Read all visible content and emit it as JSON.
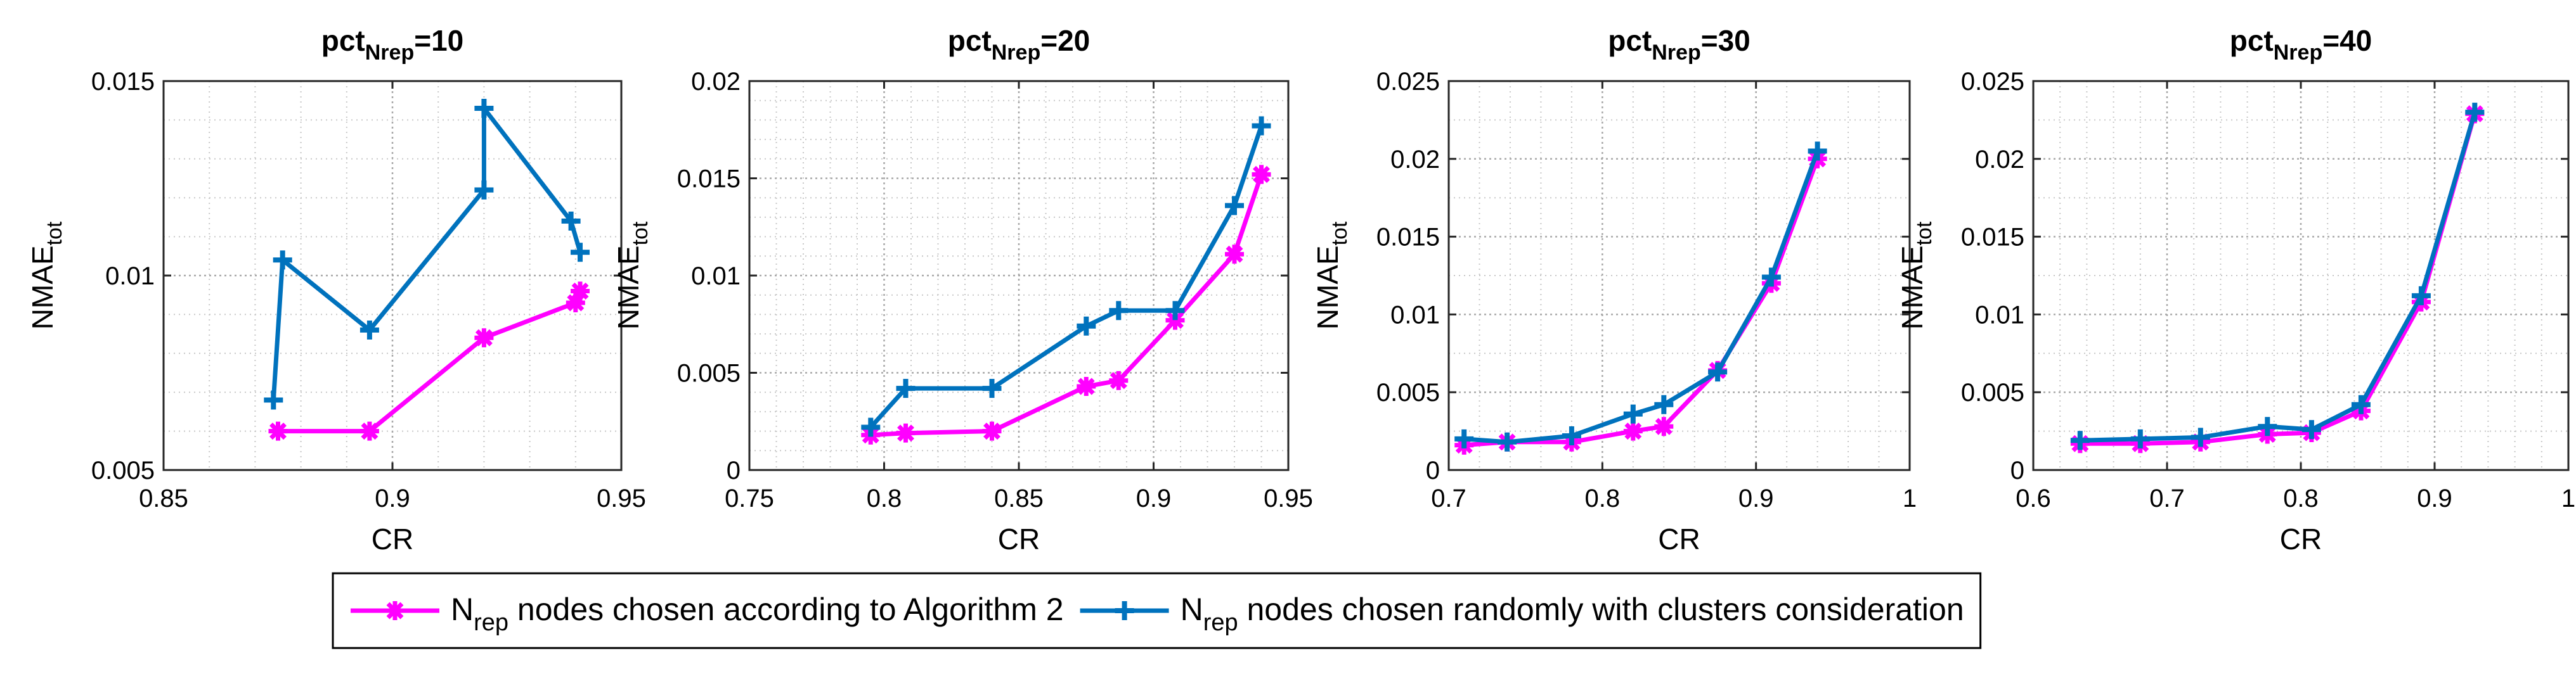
{
  "chart_data": [
    {
      "type": "line",
      "title": "pct",
      "title_sub": "Nrep",
      "title_suffix": "=10",
      "xlabel": "CR",
      "ylabel": "NMAE",
      "ylabel_sub": "tot",
      "xlim": [
        0.85,
        0.95
      ],
      "ylim": [
        0.005,
        0.015
      ],
      "xticks": [
        0.85,
        0.9,
        0.95
      ],
      "xtick_labels": [
        "0.85",
        "0.9",
        "0.95"
      ],
      "yticks": [
        0.005,
        0.01,
        0.015
      ],
      "ytick_labels": [
        "0.005",
        "0.01",
        "0.015"
      ],
      "minor_x": 0.01,
      "minor_y": 0.001,
      "grid": true,
      "series": [
        {
          "name": "algorithm2",
          "color": "#FF00FF",
          "x": [
            0.875,
            0.895,
            0.92,
            0.94,
            0.941
          ],
          "y": [
            0.006,
            0.006,
            0.0084,
            0.0093,
            0.0096
          ]
        },
        {
          "name": "random",
          "color": "#0072BD",
          "x": [
            0.874,
            0.876,
            0.895,
            0.92,
            0.92,
            0.939,
            0.941
          ],
          "y": [
            0.0068,
            0.0104,
            0.0086,
            0.0122,
            0.0143,
            0.0114,
            0.0106
          ]
        }
      ]
    },
    {
      "type": "line",
      "title": "pct",
      "title_sub": "Nrep",
      "title_suffix": "=20",
      "xlabel": "CR",
      "ylabel": "NMAE",
      "ylabel_sub": "tot",
      "xlim": [
        0.75,
        0.95
      ],
      "ylim": [
        0,
        0.02
      ],
      "xticks": [
        0.75,
        0.8,
        0.85,
        0.9,
        0.95
      ],
      "xtick_labels": [
        "0.75",
        "0.8",
        "0.85",
        "0.9",
        "0.95"
      ],
      "yticks": [
        0,
        0.005,
        0.01,
        0.015,
        0.02
      ],
      "ytick_labels": [
        "0",
        "0.005",
        "0.01",
        "0.015",
        "0.02"
      ],
      "minor_x": 0.01,
      "minor_y": 0.001,
      "grid": true,
      "series": [
        {
          "name": "algorithm2",
          "color": "#FF00FF",
          "x": [
            0.795,
            0.808,
            0.84,
            0.875,
            0.887,
            0.908,
            0.93,
            0.94
          ],
          "y": [
            0.0018,
            0.0019,
            0.002,
            0.0043,
            0.0046,
            0.0077,
            0.0111,
            0.0152
          ]
        },
        {
          "name": "random",
          "color": "#0072BD",
          "x": [
            0.795,
            0.808,
            0.84,
            0.875,
            0.887,
            0.908,
            0.93,
            0.94
          ],
          "y": [
            0.0022,
            0.0042,
            0.0042,
            0.0074,
            0.0082,
            0.0082,
            0.0136,
            0.0177
          ]
        }
      ]
    },
    {
      "type": "line",
      "title": "pct",
      "title_sub": "Nrep",
      "title_suffix": "=30",
      "xlabel": "CR",
      "ylabel": "NMAE",
      "ylabel_sub": "tot",
      "xlim": [
        0.7,
        1
      ],
      "ylim": [
        0,
        0.025
      ],
      "xticks": [
        0.7,
        0.8,
        0.9,
        1
      ],
      "xtick_labels": [
        "0.7",
        "0.8",
        "0.9",
        "1"
      ],
      "yticks": [
        0,
        0.005,
        0.01,
        0.015,
        0.02,
        0.025
      ],
      "ytick_labels": [
        "0",
        "0.005",
        "0.01",
        "0.015",
        "0.02",
        "0.025"
      ],
      "minor_x": 0.02,
      "minor_y": 0.0025,
      "grid": true,
      "series": [
        {
          "name": "algorithm2",
          "color": "#FF00FF",
          "x": [
            0.71,
            0.738,
            0.78,
            0.82,
            0.84,
            0.875,
            0.91,
            0.94
          ],
          "y": [
            0.0016,
            0.0018,
            0.0018,
            0.0025,
            0.0028,
            0.0064,
            0.012,
            0.02
          ]
        },
        {
          "name": "random",
          "color": "#0072BD",
          "x": [
            0.71,
            0.738,
            0.78,
            0.82,
            0.84,
            0.875,
            0.91,
            0.94
          ],
          "y": [
            0.002,
            0.0018,
            0.0022,
            0.0036,
            0.0042,
            0.0063,
            0.0124,
            0.0205
          ]
        }
      ]
    },
    {
      "type": "line",
      "title": "pct",
      "title_sub": "Nrep",
      "title_suffix": "=40",
      "xlabel": "CR",
      "ylabel": "NMAE",
      "ylabel_sub": "tot",
      "xlim": [
        0.6,
        1
      ],
      "ylim": [
        0,
        0.025
      ],
      "xticks": [
        0.6,
        0.7,
        0.8,
        0.9,
        1
      ],
      "xtick_labels": [
        "0.6",
        "0.7",
        "0.8",
        "0.9",
        "1"
      ],
      "yticks": [
        0,
        0.005,
        0.01,
        0.015,
        0.02,
        0.025
      ],
      "ytick_labels": [
        "0",
        "0.005",
        "0.01",
        "0.015",
        "0.02",
        "0.025"
      ],
      "minor_x": 0.02,
      "minor_y": 0.0025,
      "grid": true,
      "series": [
        {
          "name": "algorithm2",
          "color": "#FF00FF",
          "x": [
            0.635,
            0.68,
            0.725,
            0.775,
            0.808,
            0.845,
            0.89,
            0.93
          ],
          "y": [
            0.0017,
            0.0017,
            0.0018,
            0.0023,
            0.0024,
            0.0038,
            0.0108,
            0.0229
          ]
        },
        {
          "name": "random",
          "color": "#0072BD",
          "x": [
            0.635,
            0.68,
            0.725,
            0.775,
            0.808,
            0.845,
            0.89,
            0.93
          ],
          "y": [
            0.0019,
            0.002,
            0.0021,
            0.0028,
            0.0026,
            0.0042,
            0.0112,
            0.023
          ]
        }
      ]
    }
  ],
  "legend": {
    "items": [
      {
        "series": "algorithm2",
        "color": "#FF00FF",
        "main": "N",
        "sub": "rep",
        "rest": " nodes chosen according to Algorithm 2"
      },
      {
        "series": "random",
        "color": "#0072BD",
        "main": "N",
        "sub": "rep",
        "rest": " nodes chosen randomly with clusters consideration"
      }
    ]
  }
}
